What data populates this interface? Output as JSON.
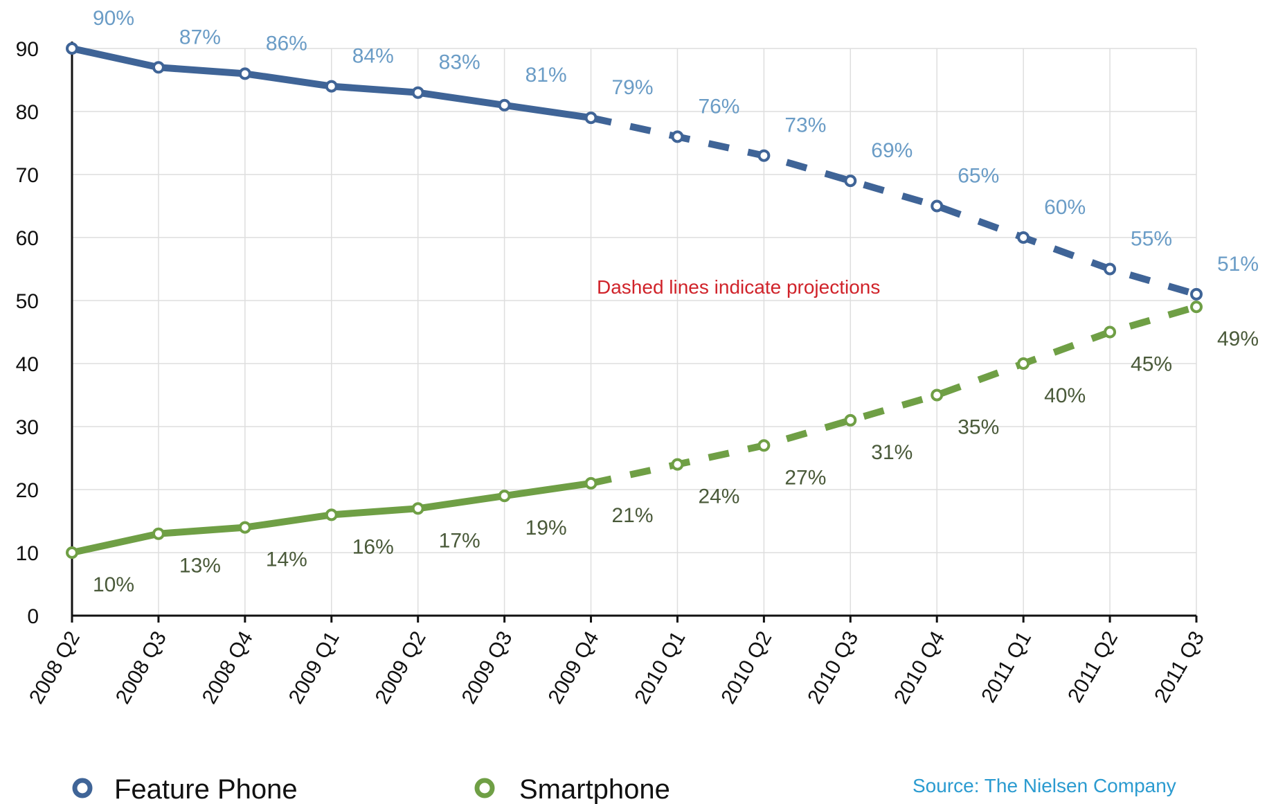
{
  "chart_data": {
    "type": "line",
    "categories": [
      "2008 Q2",
      "2008 Q3",
      "2008 Q4",
      "2009 Q1",
      "2009 Q2",
      "2009 Q3",
      "2009 Q4",
      "2010 Q1",
      "2010 Q2",
      "2010 Q3",
      "2010 Q4",
      "2011 Q1",
      "2011 Q2",
      "2011 Q3"
    ],
    "ylim": [
      0,
      90
    ],
    "yticks": [
      0,
      10,
      20,
      30,
      40,
      50,
      60,
      70,
      80,
      90
    ],
    "grid": true,
    "projection_start_index": 6,
    "series": [
      {
        "name": "Feature Phone",
        "color": "#3f6497",
        "label_color": "#6a9cc6",
        "values": [
          90,
          87,
          86,
          84,
          83,
          81,
          79,
          76,
          73,
          69,
          65,
          60,
          55,
          51
        ],
        "labels": [
          "90%",
          "87%",
          "86%",
          "84%",
          "83%",
          "81%",
          "79%",
          "76%",
          "73%",
          "69%",
          "65%",
          "60%",
          "55%",
          "51%"
        ]
      },
      {
        "name": "Smartphone",
        "color": "#6f9f45",
        "label_color": "#4a5a3a",
        "values": [
          10,
          13,
          14,
          16,
          17,
          19,
          21,
          24,
          27,
          31,
          35,
          40,
          45,
          49
        ],
        "labels": [
          "10%",
          "13%",
          "14%",
          "16%",
          "17%",
          "19%",
          "21%",
          "24%",
          "27%",
          "31%",
          "35%",
          "40%",
          "45%",
          "49%"
        ]
      }
    ],
    "annotation": "Dashed lines indicate projections",
    "annotation_color": "#d0232a",
    "source": "Source: The Nielsen Company",
    "source_color": "#2b9bd0",
    "legend_position": "bottom"
  }
}
